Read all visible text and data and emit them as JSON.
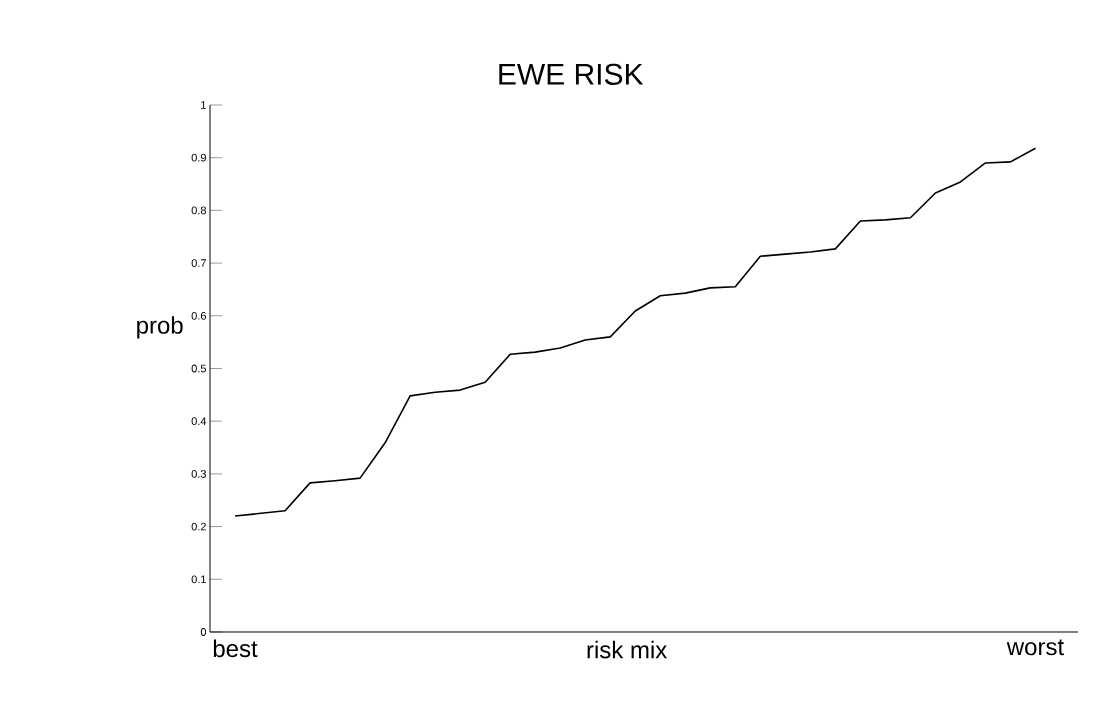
{
  "chart_data": {
    "type": "line",
    "title": "EWE RISK",
    "xlabel": "risk mix",
    "ylabel": "prob",
    "categories": [
      "best",
      null,
      null,
      null,
      null,
      null,
      null,
      null,
      null,
      null,
      null,
      null,
      null,
      null,
      null,
      null,
      null,
      null,
      null,
      null,
      null,
      null,
      null,
      null,
      null,
      null,
      null,
      null,
      null,
      null,
      null,
      null,
      "worst"
    ],
    "values": [
      0.22,
      0.225,
      0.23,
      0.283,
      0.287,
      0.292,
      0.359,
      0.448,
      0.455,
      0.459,
      0.474,
      0.527,
      0.531,
      0.539,
      0.554,
      0.56,
      0.609,
      0.638,
      0.643,
      0.653,
      0.655,
      0.713,
      0.717,
      0.721,
      0.727,
      0.78,
      0.782,
      0.786,
      0.833,
      0.854,
      0.89,
      0.892,
      0.918
    ],
    "color": "#000000",
    "ylim": [
      0,
      1
    ],
    "yticks": [
      0,
      0.1,
      0.2,
      0.3,
      0.4,
      0.5,
      0.6,
      0.7,
      0.8,
      0.9,
      1
    ]
  }
}
